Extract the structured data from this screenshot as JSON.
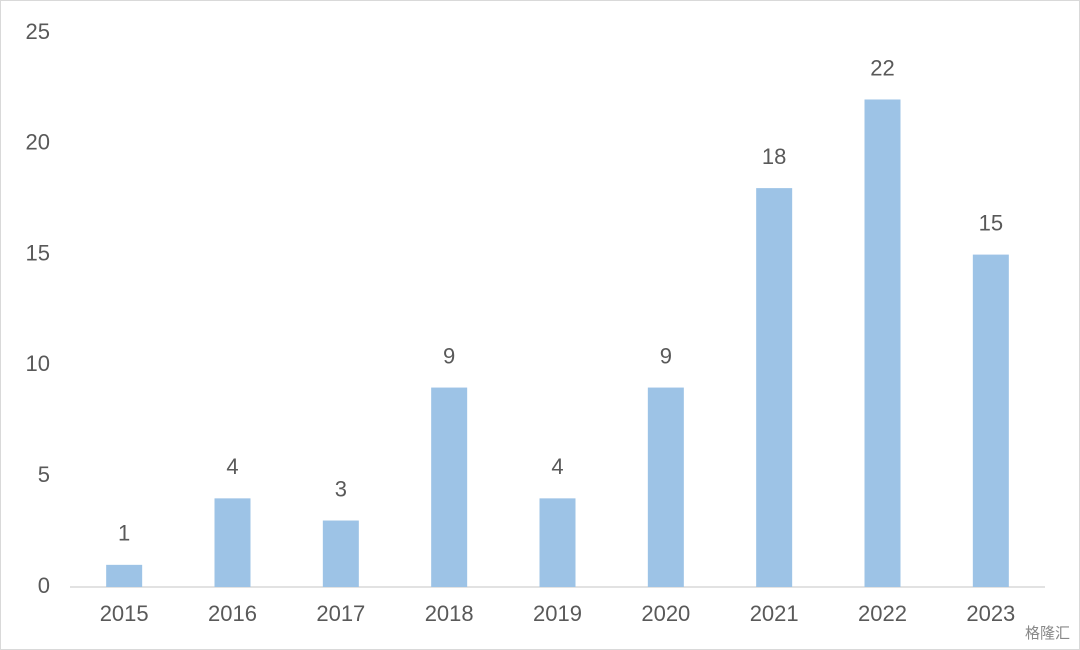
{
  "chart_data": {
    "type": "bar",
    "categories": [
      "2015",
      "2016",
      "2017",
      "2018",
      "2019",
      "2020",
      "2021",
      "2022",
      "2023"
    ],
    "values": [
      1,
      4,
      3,
      9,
      4,
      9,
      18,
      22,
      15
    ],
    "color": "#9dc3e6",
    "ylim": [
      0,
      25
    ],
    "yticks": [
      0,
      5,
      10,
      15,
      20,
      25
    ],
    "grid": false,
    "data_labels": true
  },
  "watermark": "格隆汇"
}
